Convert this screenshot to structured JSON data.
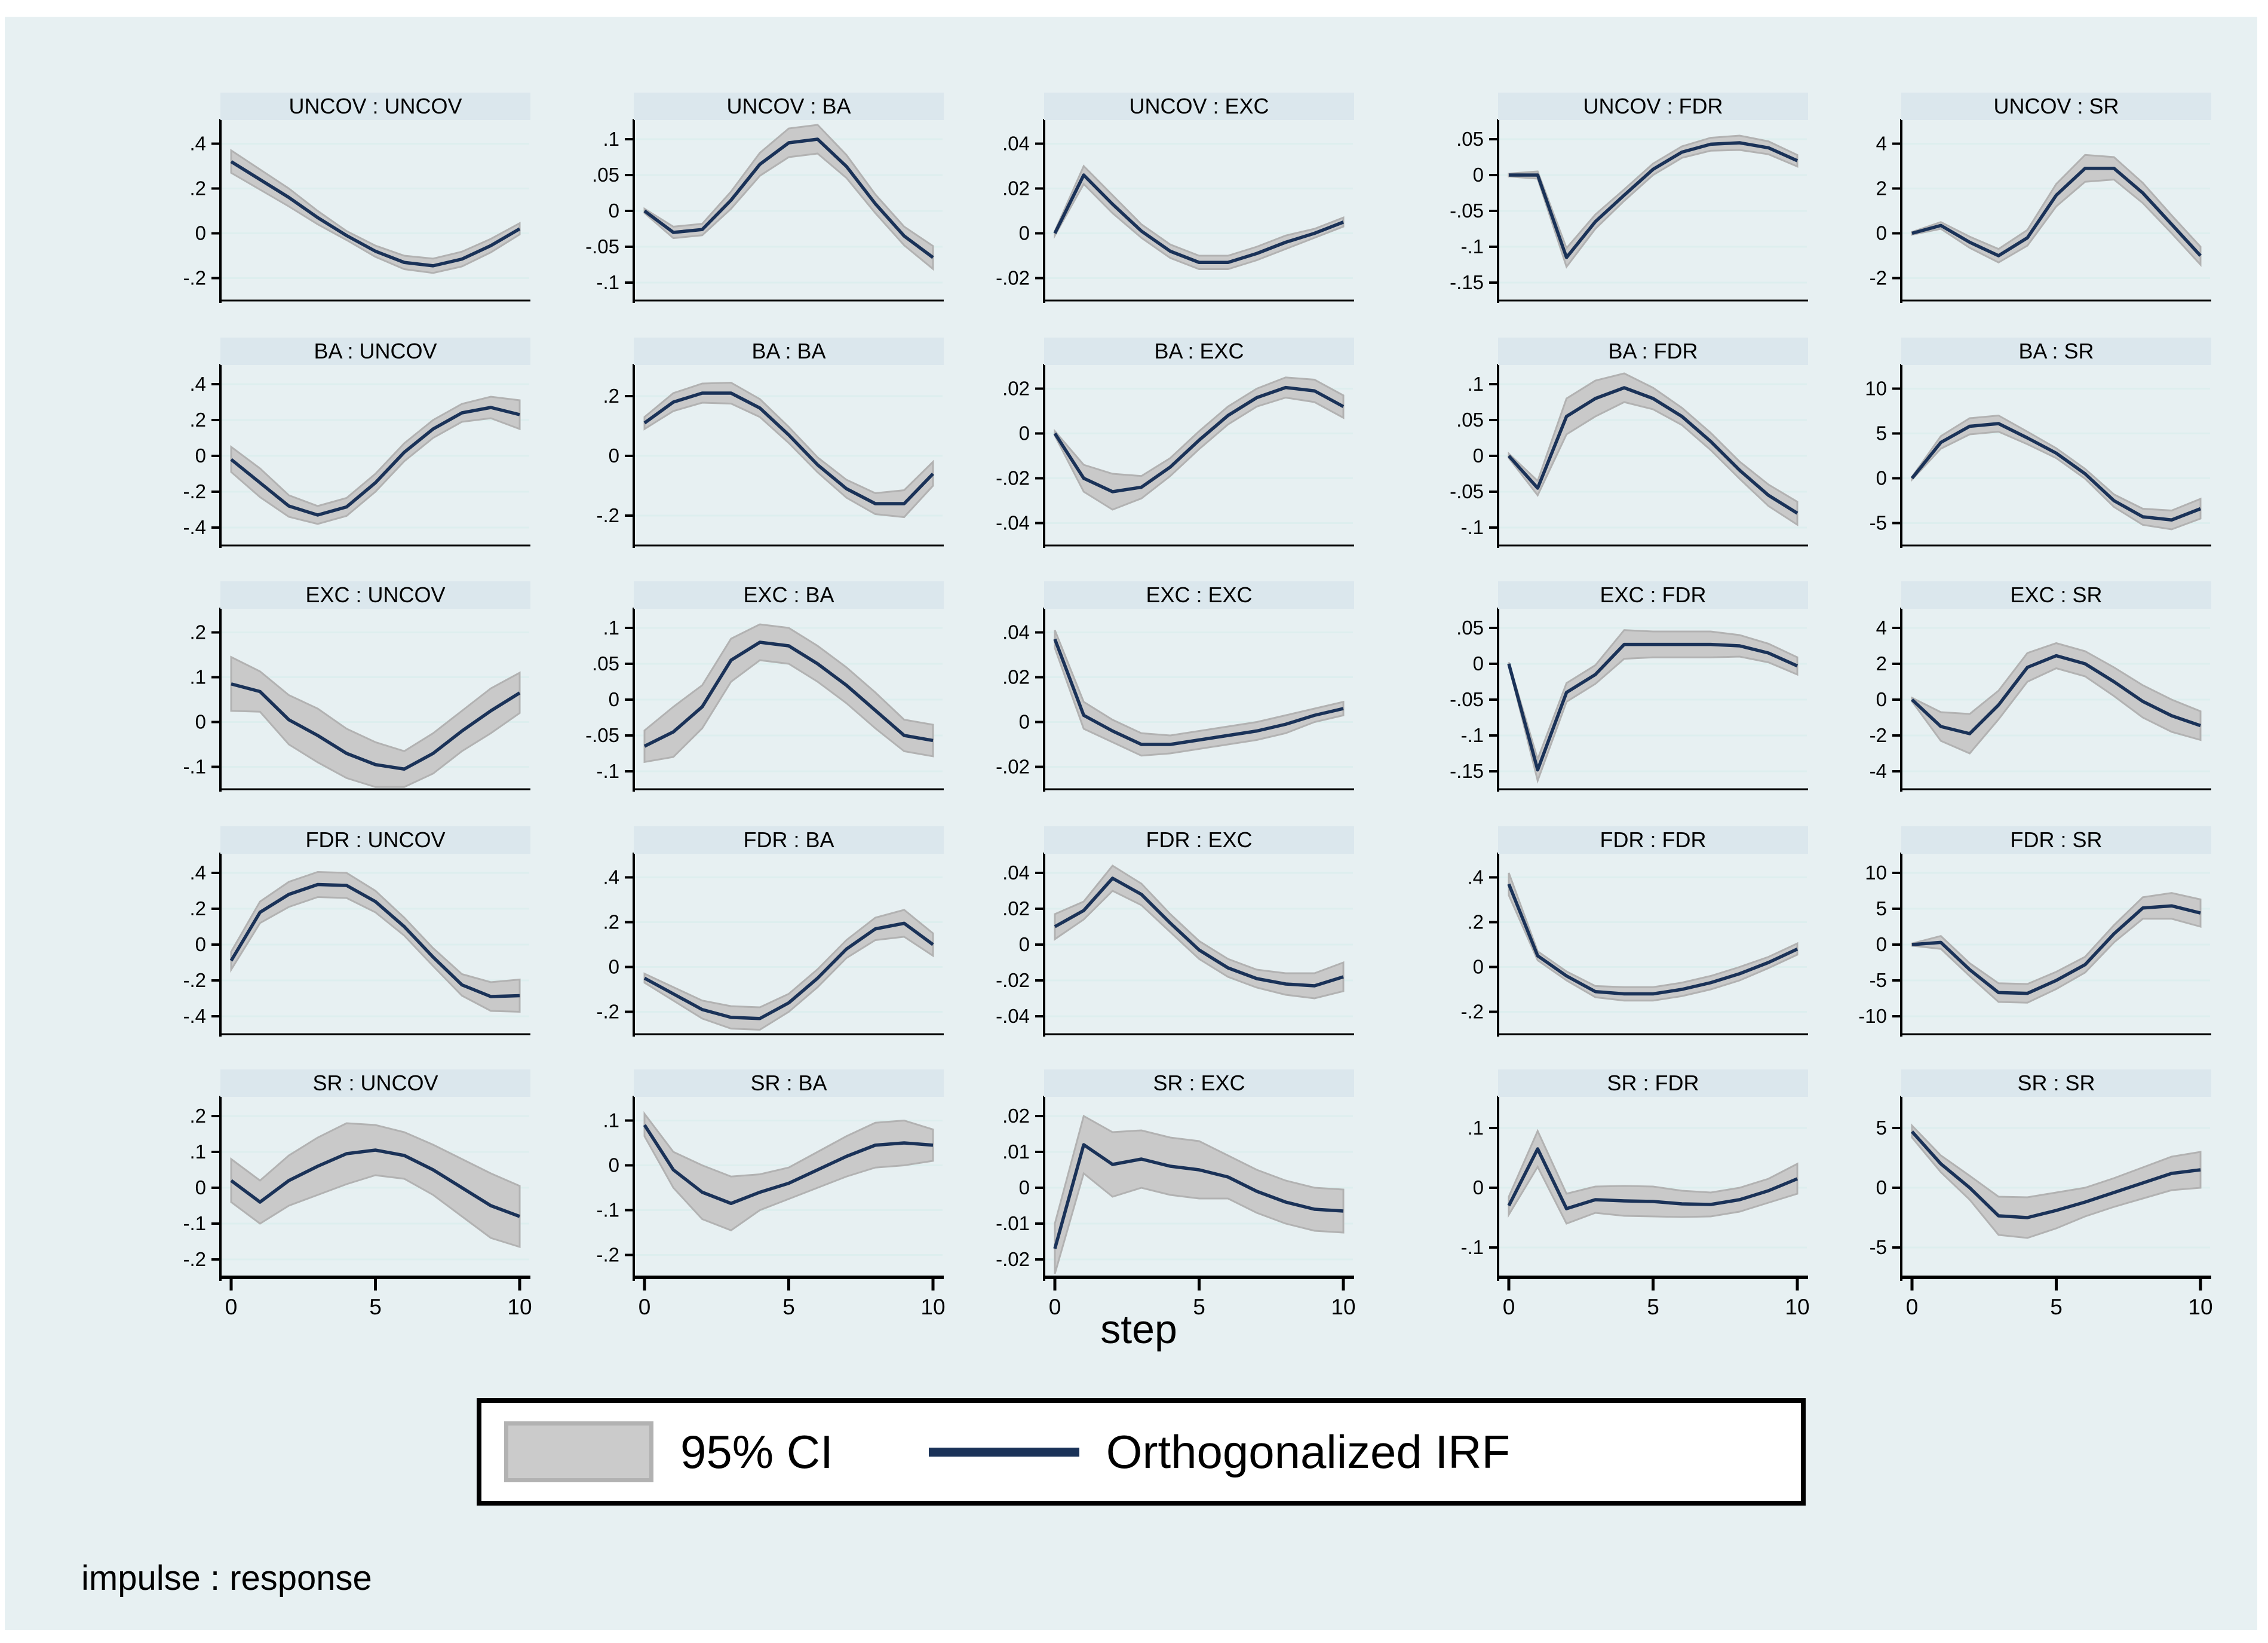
{
  "colors": {
    "page_background": "#ffffff",
    "canvas_background": "#e7f0f2",
    "panel_title_band": "#dbe7ed",
    "plot_background": "#ffffff",
    "gridline": "#ddeeee",
    "ci_fill": "#c9c9c9",
    "ci_edge": "#b2b2b2",
    "irf_line": "#1a3258",
    "axis": "#000000"
  },
  "legend": {
    "ci_label": "95% CI",
    "irf_label": "Orthogonalized IRF"
  },
  "footer": {
    "note": "impulse : response"
  },
  "chart_data": {
    "type": "line",
    "layout": "5x5 small-multiple grid of impulse-response functions with 95% confidence bands",
    "xlabel": "step",
    "x": [
      0,
      1,
      2,
      3,
      4,
      5,
      6,
      7,
      8,
      9,
      10
    ],
    "x_ticks": [
      0,
      5,
      10
    ],
    "x_tick_labels": [
      "0",
      "5",
      "10"
    ],
    "impulses": [
      "UNCOV",
      "BA",
      "EXC",
      "FDR",
      "SR"
    ],
    "responses": [
      "UNCOV",
      "BA",
      "EXC",
      "FDR",
      "SR"
    ],
    "panels": [
      {
        "title": "UNCOV : UNCOV",
        "yticks": [
          0.4,
          0.2,
          0,
          -0.2
        ],
        "ytick_labels": [
          ".4",
          ".2",
          "0",
          "-.2"
        ],
        "irf": [
          0.32,
          0.24,
          0.16,
          0.07,
          -0.01,
          -0.08,
          -0.13,
          -0.145,
          -0.115,
          -0.055,
          0.02
        ],
        "ci": [
          0.05,
          0.045,
          0.04,
          0.03,
          0.02,
          0.025,
          0.03,
          0.032,
          0.033,
          0.03,
          0.025
        ]
      },
      {
        "title": "UNCOV : BA",
        "yticks": [
          0.1,
          0.05,
          0,
          -0.05,
          -0.1
        ],
        "ytick_labels": [
          ".1",
          ".05",
          "0",
          "-.05",
          "-.1"
        ],
        "irf": [
          0.0,
          -0.03,
          -0.026,
          0.015,
          0.065,
          0.095,
          0.1,
          0.062,
          0.01,
          -0.035,
          -0.065
        ],
        "ci": [
          0.003,
          0.008,
          0.008,
          0.012,
          0.016,
          0.02,
          0.02,
          0.016,
          0.013,
          0.013,
          0.016
        ]
      },
      {
        "title": "UNCOV : EXC",
        "yticks": [
          0.04,
          0.02,
          0,
          -0.02
        ],
        "ytick_labels": [
          ".04",
          ".02",
          "0",
          "-.02"
        ],
        "irf": [
          0.0,
          0.026,
          0.013,
          0.001,
          -0.008,
          -0.013,
          -0.013,
          -0.009,
          -0.004,
          0.0,
          0.005
        ],
        "ci": [
          0.001,
          0.004,
          0.004,
          0.003,
          0.003,
          0.003,
          0.003,
          0.003,
          0.003,
          0.002,
          0.002
        ]
      },
      {
        "title": "UNCOV : FDR",
        "yticks": [
          0.05,
          0,
          -0.05,
          -0.1,
          -0.15
        ],
        "ytick_labels": [
          ".05",
          "0",
          "-.05",
          "-.1",
          "-.15"
        ],
        "irf": [
          0.0,
          0.0,
          -0.115,
          -0.065,
          -0.028,
          0.008,
          0.032,
          0.043,
          0.045,
          0.038,
          0.02
        ],
        "ci": [
          0.002,
          0.005,
          0.013,
          0.01,
          0.008,
          0.008,
          0.008,
          0.009,
          0.01,
          0.009,
          0.008
        ]
      },
      {
        "title": "UNCOV : SR",
        "yticks": [
          4,
          2,
          0,
          -2
        ],
        "ytick_labels": [
          "4",
          "2",
          "0",
          "-2"
        ],
        "irf": [
          0.0,
          0.35,
          -0.4,
          -1.0,
          -0.2,
          1.7,
          2.9,
          2.9,
          1.8,
          0.4,
          -1.0
        ],
        "ci": [
          0.06,
          0.15,
          0.25,
          0.3,
          0.35,
          0.5,
          0.6,
          0.5,
          0.45,
          0.4,
          0.4
        ]
      },
      {
        "title": "BA : UNCOV",
        "yticks": [
          0.4,
          0.2,
          0,
          -0.2,
          -0.4
        ],
        "ytick_labels": [
          ".4",
          ".2",
          "0",
          "-.2",
          "-.4"
        ],
        "irf": [
          -0.02,
          -0.15,
          -0.28,
          -0.33,
          -0.285,
          -0.15,
          0.02,
          0.15,
          0.24,
          0.27,
          0.23
        ],
        "ci": [
          0.07,
          0.08,
          0.06,
          0.05,
          0.05,
          0.05,
          0.05,
          0.05,
          0.05,
          0.06,
          0.08
        ]
      },
      {
        "title": "BA : BA",
        "yticks": [
          0.2,
          0,
          -0.2
        ],
        "ytick_labels": [
          ".2",
          "0",
          "-.2"
        ],
        "irf": [
          0.11,
          0.18,
          0.21,
          0.21,
          0.16,
          0.07,
          -0.03,
          -0.11,
          -0.16,
          -0.16,
          -0.06
        ],
        "ci": [
          0.02,
          0.03,
          0.032,
          0.035,
          0.03,
          0.027,
          0.025,
          0.03,
          0.035,
          0.045,
          0.04
        ]
      },
      {
        "title": "BA : EXC",
        "yticks": [
          0.02,
          0,
          -0.02,
          -0.04
        ],
        "ytick_labels": [
          ".02",
          "0",
          "-.02",
          "-.04"
        ],
        "irf": [
          0.0,
          -0.02,
          -0.026,
          -0.024,
          -0.015,
          -0.003,
          0.008,
          0.016,
          0.0205,
          0.019,
          0.012
        ],
        "ci": [
          0.001,
          0.006,
          0.008,
          0.005,
          0.004,
          0.004,
          0.004,
          0.004,
          0.0045,
          0.005,
          0.005
        ]
      },
      {
        "title": "BA : FDR",
        "yticks": [
          0.1,
          0.05,
          0,
          -0.05,
          -0.1
        ],
        "ytick_labels": [
          ".1",
          ".05",
          "0",
          "-.05",
          "-.1"
        ],
        "irf": [
          0.0,
          -0.045,
          0.055,
          0.08,
          0.095,
          0.08,
          0.055,
          0.02,
          -0.02,
          -0.055,
          -0.08
        ],
        "ci": [
          0.003,
          0.01,
          0.025,
          0.025,
          0.02,
          0.015,
          0.012,
          0.012,
          0.012,
          0.015,
          0.016
        ]
      },
      {
        "title": "BA : SR",
        "yticks": [
          10,
          5,
          0,
          -5
        ],
        "ytick_labels": [
          "10",
          "5",
          "0",
          "-5"
        ],
        "irf": [
          0.0,
          4.0,
          5.8,
          6.1,
          4.5,
          2.8,
          0.5,
          -2.5,
          -4.3,
          -4.65,
          -3.4
        ],
        "ci": [
          0.15,
          0.7,
          0.9,
          0.9,
          0.7,
          0.55,
          0.55,
          0.7,
          0.9,
          1.05,
          1.1
        ]
      },
      {
        "title": "EXC : UNCOV",
        "yticks": [
          0.2,
          0.1,
          0,
          -0.1
        ],
        "ytick_labels": [
          ".2",
          ".1",
          "0",
          "-.1"
        ],
        "irf": [
          0.085,
          0.068,
          0.005,
          -0.03,
          -0.07,
          -0.095,
          -0.105,
          -0.07,
          -0.02,
          0.025,
          0.065
        ],
        "ci": [
          0.06,
          0.045,
          0.055,
          0.06,
          0.055,
          0.05,
          0.04,
          0.045,
          0.045,
          0.05,
          0.045
        ]
      },
      {
        "title": "EXC : BA",
        "yticks": [
          0.1,
          0.05,
          0,
          -0.05,
          -0.1
        ],
        "ytick_labels": [
          ".1",
          ".05",
          "0",
          "-.05",
          "-.1"
        ],
        "irf": [
          -0.065,
          -0.045,
          -0.01,
          0.055,
          0.08,
          0.075,
          0.05,
          0.02,
          -0.015,
          -0.05,
          -0.057
        ],
        "ci": [
          0.022,
          0.035,
          0.03,
          0.03,
          0.025,
          0.025,
          0.025,
          0.025,
          0.025,
          0.022,
          0.022
        ]
      },
      {
        "title": "EXC : EXC",
        "yticks": [
          0.04,
          0.02,
          0,
          -0.02
        ],
        "ytick_labels": [
          ".04",
          ".02",
          "0",
          "-.02"
        ],
        "irf": [
          0.037,
          0.003,
          -0.004,
          -0.01,
          -0.01,
          -0.008,
          -0.006,
          -0.004,
          -0.001,
          0.003,
          0.006
        ],
        "ci": [
          0.004,
          0.006,
          0.005,
          0.005,
          0.004,
          0.004,
          0.004,
          0.004,
          0.004,
          0.003,
          0.003
        ]
      },
      {
        "title": "EXC : FDR",
        "yticks": [
          0.05,
          0,
          -0.05,
          -0.1,
          -0.15
        ],
        "ytick_labels": [
          ".05",
          "0",
          "-.05",
          "-.1",
          "-.15"
        ],
        "irf": [
          0.0,
          -0.148,
          -0.04,
          -0.015,
          0.027,
          0.027,
          0.027,
          0.027,
          0.025,
          0.015,
          -0.003
        ],
        "ci": [
          0.002,
          0.015,
          0.013,
          0.013,
          0.02,
          0.018,
          0.018,
          0.018,
          0.015,
          0.013,
          0.012
        ]
      },
      {
        "title": "EXC : SR",
        "yticks": [
          4,
          2,
          0,
          -2,
          -4
        ],
        "ytick_labels": [
          "4",
          "2",
          "0",
          "-2",
          "-4"
        ],
        "irf": [
          0.0,
          -1.5,
          -1.9,
          -0.3,
          1.8,
          2.45,
          2.0,
          1.0,
          -0.1,
          -0.9,
          -1.45
        ],
        "ci": [
          0.1,
          0.8,
          1.1,
          0.8,
          0.8,
          0.7,
          0.7,
          0.8,
          0.9,
          0.9,
          0.8
        ]
      },
      {
        "title": "FDR : UNCOV",
        "yticks": [
          0.4,
          0.2,
          0,
          -0.2,
          -0.4
        ],
        "ytick_labels": [
          ".4",
          ".2",
          "0",
          "-.2",
          "-.4"
        ],
        "irf": [
          -0.09,
          0.18,
          0.28,
          0.335,
          0.33,
          0.24,
          0.1,
          -0.07,
          -0.225,
          -0.29,
          -0.285
        ],
        "ci": [
          0.05,
          0.06,
          0.07,
          0.07,
          0.07,
          0.06,
          0.05,
          0.05,
          0.06,
          0.08,
          0.09
        ]
      },
      {
        "title": "FDR : BA",
        "yticks": [
          0.4,
          0.2,
          0,
          -0.2
        ],
        "ytick_labels": [
          ".4",
          ".2",
          "0",
          "-.2"
        ],
        "irf": [
          -0.05,
          -0.12,
          -0.19,
          -0.225,
          -0.23,
          -0.16,
          -0.05,
          0.08,
          0.17,
          0.195,
          0.1
        ],
        "ci": [
          0.02,
          0.03,
          0.04,
          0.05,
          0.05,
          0.04,
          0.04,
          0.04,
          0.05,
          0.06,
          0.05
        ]
      },
      {
        "title": "FDR : EXC",
        "yticks": [
          0.04,
          0.02,
          0,
          -0.02,
          -0.04
        ],
        "ytick_labels": [
          ".04",
          ".02",
          "0",
          "-.02",
          "-.04"
        ],
        "irf": [
          0.01,
          0.019,
          0.037,
          0.028,
          0.012,
          -0.003,
          -0.013,
          -0.019,
          -0.022,
          -0.023,
          -0.018
        ],
        "ci": [
          0.007,
          0.005,
          0.007,
          0.006,
          0.005,
          0.005,
          0.005,
          0.005,
          0.006,
          0.007,
          0.008
        ]
      },
      {
        "title": "FDR : FDR",
        "yticks": [
          0.4,
          0.2,
          0,
          -0.2
        ],
        "ytick_labels": [
          ".4",
          ".2",
          "0",
          "-.2"
        ],
        "irf": [
          0.37,
          0.05,
          -0.04,
          -0.11,
          -0.12,
          -0.12,
          -0.1,
          -0.07,
          -0.03,
          0.02,
          0.08
        ],
        "ci": [
          0.05,
          0.02,
          0.02,
          0.025,
          0.03,
          0.03,
          0.03,
          0.03,
          0.03,
          0.025,
          0.025
        ]
      },
      {
        "title": "FDR : SR",
        "yticks": [
          10,
          5,
          0,
          -5,
          -10
        ],
        "ytick_labels": [
          "10",
          "5",
          "0",
          "-5",
          "-10"
        ],
        "irf": [
          0.0,
          0.3,
          -3.5,
          -6.7,
          -6.8,
          -5.0,
          -2.8,
          1.5,
          5.1,
          5.4,
          4.4
        ],
        "ci": [
          0.15,
          0.9,
          0.9,
          1.3,
          1.3,
          1.2,
          1.1,
          1.2,
          1.5,
          1.8,
          1.9
        ]
      },
      {
        "title": "SR : UNCOV",
        "yticks": [
          0.2,
          0.1,
          0,
          -0.1,
          -0.2
        ],
        "ytick_labels": [
          ".2",
          ".1",
          "0",
          "-.1",
          "-.2"
        ],
        "irf": [
          0.02,
          -0.04,
          0.02,
          0.06,
          0.095,
          0.105,
          0.09,
          0.05,
          0.0,
          -0.05,
          -0.08
        ],
        "ci": [
          0.06,
          0.06,
          0.07,
          0.08,
          0.085,
          0.07,
          0.065,
          0.07,
          0.08,
          0.09,
          0.085
        ]
      },
      {
        "title": "SR : BA",
        "yticks": [
          0.1,
          0,
          -0.1,
          -0.2
        ],
        "ytick_labels": [
          ".1",
          "0",
          "-.1",
          "-.2"
        ],
        "irf": [
          0.09,
          -0.01,
          -0.06,
          -0.085,
          -0.06,
          -0.04,
          -0.01,
          0.02,
          0.045,
          0.05,
          0.045
        ],
        "ci": [
          0.025,
          0.04,
          0.06,
          0.06,
          0.04,
          0.035,
          0.04,
          0.045,
          0.05,
          0.05,
          0.035
        ]
      },
      {
        "title": "SR : EXC",
        "yticks": [
          0.02,
          0.01,
          0,
          -0.01,
          -0.02
        ],
        "ytick_labels": [
          ".02",
          ".01",
          "0",
          "-.01",
          "-.02"
        ],
        "irf": [
          -0.017,
          0.012,
          0.0065,
          0.008,
          0.006,
          0.005,
          0.003,
          -0.001,
          -0.004,
          -0.006,
          -0.0065
        ],
        "ci": [
          0.007,
          0.008,
          0.009,
          0.008,
          0.008,
          0.008,
          0.006,
          0.006,
          0.006,
          0.006,
          0.006
        ]
      },
      {
        "title": "SR : FDR",
        "yticks": [
          0.1,
          0,
          -0.1
        ],
        "ytick_labels": [
          ".1",
          "0",
          "-.1"
        ],
        "irf": [
          -0.03,
          0.065,
          -0.035,
          -0.02,
          -0.022,
          -0.023,
          -0.027,
          -0.028,
          -0.02,
          -0.005,
          0.015
        ],
        "ci": [
          0.015,
          0.03,
          0.025,
          0.022,
          0.025,
          0.025,
          0.022,
          0.02,
          0.02,
          0.02,
          0.025
        ]
      },
      {
        "title": "SR : SR",
        "yticks": [
          5,
          0,
          -5
        ],
        "ytick_labels": [
          "5",
          "0",
          "-5"
        ],
        "irf": [
          4.7,
          2.0,
          0.0,
          -2.35,
          -2.5,
          -1.9,
          -1.2,
          -0.4,
          0.4,
          1.2,
          1.5
        ],
        "ci": [
          0.5,
          0.7,
          1.0,
          1.6,
          1.7,
          1.5,
          1.2,
          1.2,
          1.3,
          1.4,
          1.5
        ]
      }
    ]
  }
}
